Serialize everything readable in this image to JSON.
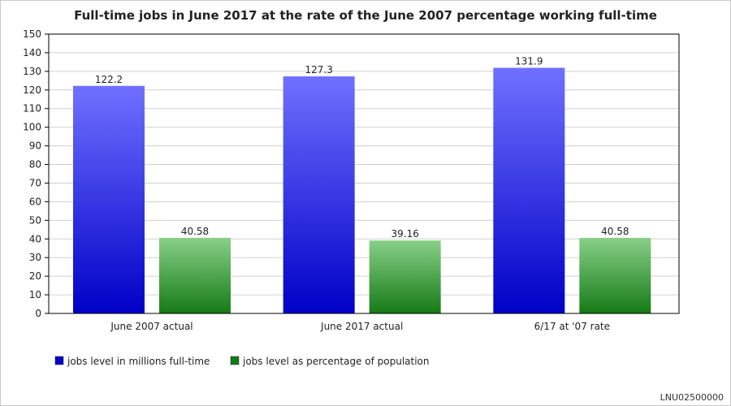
{
  "chart_data": {
    "type": "bar",
    "title": "Full-time jobs in June 2017 at the rate of the June 2007 percentage working full-time",
    "categories": [
      "June 2007 actual",
      "June 2017 actual",
      "6/17 at '07 rate"
    ],
    "series": [
      {
        "name": "jobs level in millions full-time",
        "values": [
          122.2,
          127.3,
          131.9
        ],
        "labels": [
          "122.2",
          "127.3",
          "131.9"
        ],
        "color_top": "#7070ff",
        "color_bottom": "#0000c8"
      },
      {
        "name": "jobs level as percentage of population",
        "values": [
          40.58,
          39.16,
          40.58
        ],
        "labels": [
          "40.58",
          "39.16",
          "40.58"
        ],
        "color_top": "#88d088",
        "color_bottom": "#157a15"
      }
    ],
    "ylim": [
      0,
      150
    ],
    "yticks": [
      0,
      10,
      20,
      30,
      40,
      50,
      60,
      70,
      80,
      90,
      100,
      110,
      120,
      130,
      140,
      150
    ],
    "grid": true,
    "legend_position": "bottom-left"
  },
  "footer": {
    "series_id": "LNU02500000"
  }
}
